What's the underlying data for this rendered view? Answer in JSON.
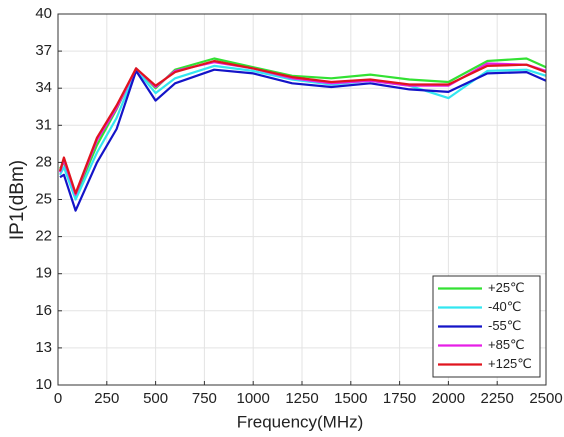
{
  "chart_data": {
    "type": "line",
    "x_label": "Frequency(MHz)",
    "y_label": "IP1(dBm)",
    "x": [
      10,
      30,
      90,
      200,
      300,
      400,
      500,
      600,
      800,
      1000,
      1200,
      1400,
      1600,
      1800,
      2000,
      2200,
      2400,
      2500
    ],
    "series": [
      {
        "name": "+25℃",
        "color": "#33e133",
        "values": [
          27.5,
          28.0,
          25.3,
          29.4,
          32.3,
          35.6,
          34.0,
          35.5,
          36.4,
          35.7,
          35.0,
          34.8,
          35.1,
          34.7,
          34.5,
          36.2,
          36.4,
          35.7
        ]
      },
      {
        "name": "-40℃",
        "color": "#33e6f0",
        "values": [
          27.0,
          27.6,
          25.0,
          28.8,
          31.6,
          35.5,
          33.6,
          34.8,
          35.8,
          35.4,
          34.7,
          34.3,
          34.6,
          34.2,
          33.2,
          35.4,
          35.5,
          35.0
        ]
      },
      {
        "name": "-55℃",
        "color": "#1414c8",
        "values": [
          26.8,
          27.0,
          24.1,
          28.0,
          30.7,
          35.4,
          33.0,
          34.4,
          35.5,
          35.2,
          34.4,
          34.1,
          34.4,
          33.9,
          33.7,
          35.2,
          35.3,
          34.6
        ]
      },
      {
        "name": "+85℃",
        "color": "#e61ee6",
        "values": [
          27.2,
          28.2,
          25.4,
          29.8,
          32.4,
          35.6,
          34.1,
          35.4,
          36.1,
          35.6,
          34.8,
          34.4,
          34.6,
          34.2,
          34.2,
          36.0,
          35.9,
          35.4
        ]
      },
      {
        "name": "+125℃",
        "color": "#e0141e",
        "values": [
          27.3,
          28.4,
          25.5,
          30.0,
          32.6,
          35.6,
          34.2,
          35.3,
          36.2,
          35.6,
          34.9,
          34.5,
          34.7,
          34.3,
          34.3,
          35.8,
          35.9,
          35.3
        ]
      }
    ],
    "xlim": [
      0,
      2500
    ],
    "xticks": [
      0,
      250,
      500,
      750,
      1000,
      1250,
      1500,
      1750,
      2000,
      2250,
      2500
    ],
    "ylim": [
      10,
      40
    ],
    "yticks": [
      10,
      13,
      16,
      19,
      22,
      25,
      28,
      31,
      34,
      37,
      40
    ],
    "grid": true,
    "legend": "lower right"
  }
}
